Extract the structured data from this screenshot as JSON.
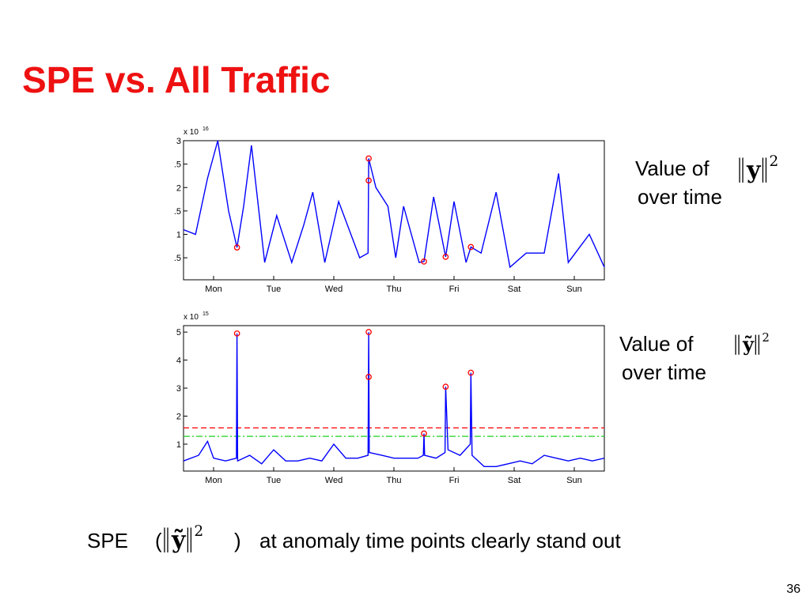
{
  "title": "SPE vs. All Traffic",
  "chart_data": [
    {
      "type": "line",
      "y_scale_label": {
        "text": "x 10",
        "exponent": "16"
      },
      "x": [
        0,
        0.2,
        0.4,
        0.57,
        0.75,
        0.89,
        1.0,
        1.13,
        1.35,
        1.55,
        1.8,
        2.0,
        2.15,
        2.35,
        2.58,
        2.93,
        3.07,
        3.08,
        3.2,
        3.4,
        3.53,
        3.66,
        3.92,
        4.0,
        4.16,
        4.36,
        4.5,
        4.7,
        4.78,
        4.95,
        5.2,
        5.43,
        5.7,
        6.0,
        6.24,
        6.4,
        6.75,
        7.0
      ],
      "series": [
        {
          "color": "#0000ff",
          "values": [
            1.1,
            1.0,
            2.2,
            3.0,
            1.5,
            0.72,
            1.6,
            2.9,
            0.4,
            1.4,
            0.4,
            1.2,
            1.9,
            0.4,
            1.7,
            0.5,
            0.6,
            2.62,
            2.0,
            1.6,
            0.5,
            1.6,
            0.4,
            0.42,
            1.8,
            0.52,
            1.7,
            0.4,
            0.73,
            0.6,
            1.9,
            0.3,
            0.6,
            0.6,
            2.3,
            0.4,
            1.0,
            0.3
          ]
        }
      ],
      "markers": {
        "color": "#ff0000",
        "x": [
          0.89,
          3.08,
          3.08,
          4.0,
          4.36,
          4.78
        ],
        "values": [
          0.72,
          2.62,
          2.15,
          0.42,
          0.52,
          0.73
        ]
      },
      "xlim": [
        0,
        7
      ],
      "ylim": [
        0.03,
        3
      ],
      "xticks": [
        {
          "value": 0.5,
          "label": "Mon"
        },
        {
          "value": 1.5,
          "label": "Tue"
        },
        {
          "value": 2.5,
          "label": "Wed"
        },
        {
          "value": 3.5,
          "label": "Thu"
        },
        {
          "value": 4.5,
          "label": "Fri"
        },
        {
          "value": 5.5,
          "label": "Sat"
        },
        {
          "value": 6.5,
          "label": "Sun"
        }
      ],
      "yticks": [
        3,
        {
          "value": 2.5,
          "label": ".5"
        },
        2,
        {
          "value": 1.5,
          "label": ".5"
        },
        1,
        {
          "value": 0.5,
          "label": ".5"
        }
      ],
      "side_label": {
        "lines": [
          "Value of",
          "over time"
        ],
        "symbol": "y",
        "exponent": "2"
      }
    },
    {
      "type": "line",
      "y_scale_label": {
        "text": "x 10",
        "exponent": "15"
      },
      "x": [
        0,
        0.25,
        0.4,
        0.5,
        0.7,
        0.88,
        0.89,
        0.9,
        1.1,
        1.3,
        1.5,
        1.7,
        1.9,
        2.1,
        2.3,
        2.5,
        2.7,
        2.9,
        3.07,
        3.08,
        3.09,
        3.3,
        3.5,
        3.7,
        3.9,
        3.99,
        4.0,
        4.01,
        4.2,
        4.35,
        4.36,
        4.4,
        4.6,
        4.77,
        4.78,
        4.8,
        5.0,
        5.2,
        5.4,
        5.6,
        5.8,
        6.0,
        6.2,
        6.4,
        6.6,
        6.8,
        7.0
      ],
      "series": [
        {
          "color": "#0000ff",
          "values": [
            0.4,
            0.6,
            1.1,
            0.5,
            0.4,
            0.5,
            4.95,
            0.4,
            0.6,
            0.3,
            0.8,
            0.4,
            0.4,
            0.5,
            0.4,
            1.0,
            0.5,
            0.5,
            0.6,
            5.0,
            0.7,
            0.6,
            0.5,
            0.5,
            0.5,
            0.6,
            1.38,
            0.6,
            0.5,
            0.7,
            3.05,
            0.8,
            0.6,
            1.0,
            3.55,
            0.6,
            0.2,
            0.2,
            0.3,
            0.4,
            0.3,
            0.6,
            0.5,
            0.4,
            0.5,
            0.4,
            0.5
          ]
        }
      ],
      "markers": {
        "color": "#ff0000",
        "x": [
          0.89,
          3.08,
          3.08,
          4.0,
          4.36,
          4.78
        ],
        "values": [
          4.95,
          5.0,
          3.4,
          1.38,
          3.05,
          3.55
        ]
      },
      "hlines": [
        {
          "value": 1.58,
          "color": "#ff0000",
          "style": "dashed"
        },
        {
          "value": 1.28,
          "color": "#00cc00",
          "style": "dashdot"
        }
      ],
      "xlim": [
        0,
        7
      ],
      "ylim": [
        0.04,
        5.23
      ],
      "xticks": [
        {
          "value": 0.5,
          "label": "Mon"
        },
        {
          "value": 1.5,
          "label": "Tue"
        },
        {
          "value": 2.5,
          "label": "Wed"
        },
        {
          "value": 3.5,
          "label": "Thu"
        },
        {
          "value": 4.5,
          "label": "Fri"
        },
        {
          "value": 5.5,
          "label": "Sat"
        },
        {
          "value": 6.5,
          "label": "Sun"
        }
      ],
      "yticks": [
        1,
        2,
        3,
        4,
        5
      ],
      "side_label": {
        "lines": [
          "Value of",
          "over time"
        ],
        "symbol": "ỹ",
        "exponent": "2"
      }
    }
  ],
  "caption": {
    "lead": "SPE",
    "open": "(",
    "symbol": "ỹ",
    "exponent": "2",
    "close": ")",
    "text": "at anomaly time points clearly stand out"
  },
  "page_number": "36"
}
